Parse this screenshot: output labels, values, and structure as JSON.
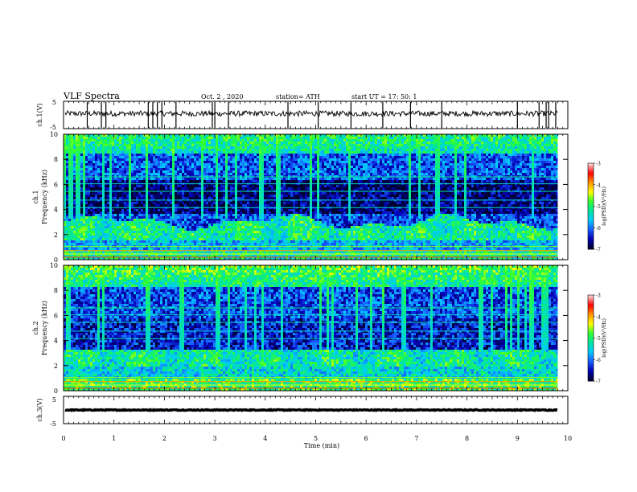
{
  "header": {
    "title": "VLF Spectra",
    "date": "Oct. 2  , 2020",
    "station": "station= ATH",
    "start": "start  UT  =   17: 50: 1"
  },
  "chart_data": {
    "type": "heatmap",
    "x_axis": {
      "label": "Time  (min)",
      "range": [
        0,
        10
      ],
      "ticks": [
        0,
        1,
        2,
        3,
        4,
        5,
        6,
        7,
        8,
        9,
        10
      ],
      "ticks_text": [
        "0",
        "1",
        "2",
        "3",
        "4",
        "5",
        "6",
        "7",
        "8",
        "9",
        "10"
      ],
      "data_end": 9.8
    },
    "panels": [
      {
        "kind": "timeseries",
        "ylabel": "ch.1(V)",
        "ylim": [
          -5,
          5
        ],
        "ticks_text": [
          "5",
          "-5"
        ],
        "baseline": 0.5,
        "noise": 1.0,
        "spike_times": [
          0.47,
          0.75,
          0.84,
          1.68,
          1.77,
          1.86,
          1.95,
          2.23,
          2.95,
          3.0,
          3.27,
          4.45,
          5.05,
          5.7,
          6.33,
          6.88,
          7.5,
          9.0,
          9.43,
          9.57,
          9.62,
          9.76
        ]
      },
      {
        "kind": "spectrogram",
        "ylabel": "ch.1\nFrequency  (kHz)",
        "ylim": [
          0,
          10
        ],
        "ticks_text": [
          "0",
          "2",
          "4",
          "6",
          "8",
          "10"
        ],
        "colorbar": {
          "label": "log(PSD)(V²/Hz)",
          "range": [
            -7,
            -3
          ],
          "ticks_text": [
            "-3",
            "-4",
            "-5",
            "-6",
            "-7"
          ]
        }
      },
      {
        "kind": "spectrogram",
        "ylabel": "ch.2\nFrequency  (kHz)",
        "ylim": [
          0,
          10
        ],
        "ticks_text": [
          "0",
          "2",
          "4",
          "6",
          "8",
          "10"
        ],
        "colorbar": {
          "label": "log(PSD)(V²/Hz)",
          "range": [
            -7,
            -3
          ],
          "ticks_text": [
            "-3",
            "-4",
            "-5",
            "-6",
            "-7"
          ]
        }
      },
      {
        "kind": "timeseries",
        "ylabel": "ch.3(V)",
        "ylim": [
          -5,
          5
        ],
        "ticks_text": [
          "5",
          "-5"
        ],
        "baseline": 0.0,
        "noise": 0.15,
        "spike_times": []
      }
    ],
    "colormap": [
      "#000030",
      "#0000b4",
      "#1a5cff",
      "#00c8ff",
      "#00e6a0",
      "#30ff30",
      "#ffff00",
      "#ff9600",
      "#ff0000",
      "#ffd2d2"
    ]
  }
}
